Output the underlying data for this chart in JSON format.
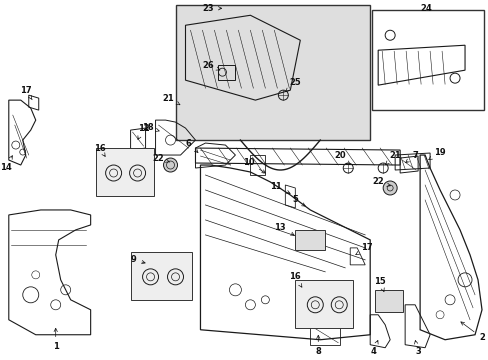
{
  "bg_color": "#ffffff",
  "fig_width": 4.89,
  "fig_height": 3.6,
  "dpi": 100,
  "line_color": "#1a1a1a",
  "lw_main": 0.9,
  "lw_thin": 0.5,
  "font_size": 6.0
}
